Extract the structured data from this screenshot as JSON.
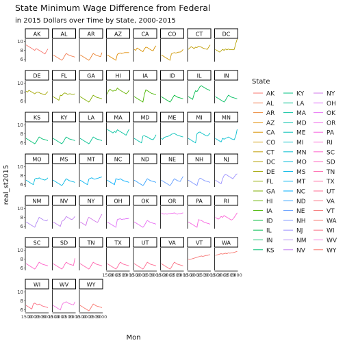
{
  "chart_data": {
    "type": "line",
    "title": "State Minimum Wage Difference from Federal",
    "subtitle": "in 2015 Dollars over Time by State, 2000-2015",
    "xlabel": "Mon",
    "ylabel": "real_st2015",
    "y_ticks": [
      "6",
      "8",
      "10"
    ],
    "x_ticks": [
      "1500",
      "2000",
      "2500",
      "3000"
    ],
    "legend_title": "State",
    "legend_position": "right",
    "grid": false,
    "facet": "wrap by State, 8 columns",
    "colors": {
      "AK": "#F8766D",
      "AL": "#F27D52",
      "AR": "#EA8331",
      "AZ": "#E18A00",
      "CA": "#D89000",
      "CO": "#CD9600",
      "CT": "#C09B00",
      "DC": "#B3A000",
      "DE": "#A3A500",
      "FL": "#93AA00",
      "GA": "#7FAE00",
      "HI": "#67B200",
      "IA": "#48B600",
      "ID": "#00BA38",
      "IL": "#00BB4E",
      "IN": "#00BD61",
      "KS": "#00BF71",
      "KY": "#00C081",
      "LA": "#00C08F",
      "MA": "#00C19D",
      "MD": "#00C1AA",
      "ME": "#00C0B7",
      "MI": "#00BFC4",
      "MN": "#00BDD0",
      "MO": "#00BADB",
      "MS": "#00B6E5",
      "MT": "#00B2EF",
      "NC": "#00ACFC",
      "ND": "#35A2FF",
      "NE": "#619CFF",
      "NH": "#7F96FF",
      "NJ": "#9A8FFF",
      "NM": "#B085F5",
      "NV": "#C17FF0",
      "NY": "#D177E9",
      "OH": "#DF70F8",
      "OK": "#E76BF3",
      "OR": "#F066EA",
      "PA": "#F763E0",
      "RI": "#FC61D5",
      "SC": "#FF61C9",
      "SD": "#FF63BC",
      "TN": "#FF66AE",
      "TX": "#FF69A0",
      "UT": "#FF6C91",
      "VA": "#FA6F81",
      "VT": "#F67474",
      "WA": "#F8766D",
      "WI": "#FB6D82",
      "WV": "#F473DF",
      "WY": "#F8766D"
    },
    "series": [
      {
        "name": "AK",
        "values": [
          9.2,
          9.0,
          8.8,
          8.6,
          8.4,
          8.2,
          8.0,
          8.4,
          8.2,
          8.0,
          7.8,
          7.6,
          7.4,
          7.2,
          7.8,
          8.3
        ]
      },
      {
        "name": "AL",
        "values": [
          7.0,
          6.8,
          6.6,
          6.4,
          6.2,
          6.0,
          5.8,
          6.2,
          6.8,
          7.3,
          7.1,
          6.9,
          6.8,
          6.7,
          6.6,
          6.5
        ]
      },
      {
        "name": "AR",
        "values": [
          7.0,
          6.8,
          6.6,
          6.4,
          6.2,
          6.0,
          5.8,
          6.2,
          6.8,
          7.3,
          7.1,
          6.9,
          6.8,
          6.7,
          6.6,
          7.5
        ]
      },
      {
        "name": "AZ",
        "values": [
          7.0,
          6.8,
          6.6,
          6.4,
          6.2,
          6.0,
          5.8,
          7.1,
          7.3,
          7.4,
          7.3,
          7.4,
          7.5,
          7.5,
          7.5,
          7.5
        ]
      },
      {
        "name": "CA",
        "values": [
          8.2,
          8.0,
          8.5,
          8.3,
          8.1,
          7.9,
          7.7,
          8.3,
          8.7,
          8.6,
          8.4,
          8.2,
          8.0,
          7.9,
          8.6,
          9.0
        ]
      },
      {
        "name": "CO",
        "values": [
          7.0,
          6.8,
          6.6,
          6.4,
          6.2,
          6.0,
          5.8,
          7.2,
          7.4,
          7.5,
          7.4,
          7.5,
          7.6,
          7.6,
          7.8,
          8.2
        ]
      },
      {
        "name": "CT",
        "values": [
          8.2,
          8.5,
          8.8,
          8.6,
          8.4,
          8.7,
          8.6,
          8.9,
          8.8,
          8.7,
          8.5,
          8.4,
          8.3,
          8.2,
          8.7,
          9.2
        ]
      },
      {
        "name": "DC",
        "values": [
          8.2,
          8.0,
          7.8,
          7.6,
          7.9,
          8.2,
          8.0,
          8.3,
          8.1,
          8.3,
          8.1,
          8.2,
          8.1,
          8.2,
          9.5,
          10.5
        ]
      },
      {
        "name": "DE",
        "values": [
          8.2,
          8.0,
          8.4,
          8.2,
          8.0,
          7.8,
          7.6,
          7.9,
          8.0,
          7.9,
          7.7,
          7.6,
          7.5,
          7.4,
          7.8,
          8.1
        ]
      },
      {
        "name": "FL",
        "values": [
          7.0,
          6.8,
          6.6,
          6.4,
          6.2,
          7.3,
          7.2,
          7.6,
          7.8,
          7.7,
          7.5,
          7.6,
          7.6,
          7.5,
          7.5,
          7.6
        ]
      },
      {
        "name": "GA",
        "values": [
          7.0,
          6.8,
          6.6,
          6.4,
          6.2,
          6.0,
          5.8,
          6.2,
          6.8,
          7.3,
          7.1,
          6.9,
          6.8,
          6.7,
          6.6,
          6.5
        ]
      },
      {
        "name": "HI",
        "values": [
          7.5,
          8.3,
          8.6,
          8.4,
          8.2,
          8.4,
          8.3,
          8.9,
          8.6,
          8.4,
          8.2,
          8.0,
          7.8,
          7.6,
          7.9,
          8.4
        ]
      },
      {
        "name": "IA",
        "values": [
          7.0,
          6.8,
          6.6,
          6.4,
          6.2,
          6.0,
          5.8,
          7.5,
          8.5,
          8.3,
          8.1,
          7.9,
          7.7,
          7.6,
          7.5,
          7.4
        ]
      },
      {
        "name": "ID",
        "values": [
          7.0,
          6.8,
          6.6,
          6.4,
          6.2,
          6.0,
          5.8,
          6.2,
          6.8,
          7.3,
          7.1,
          6.9,
          6.8,
          6.7,
          6.6,
          6.5
        ]
      },
      {
        "name": "IL",
        "values": [
          7.0,
          6.8,
          6.6,
          6.4,
          7.5,
          8.3,
          8.1,
          8.6,
          9.2,
          9.4,
          9.2,
          9.0,
          8.8,
          8.6,
          8.5,
          8.3
        ]
      },
      {
        "name": "IN",
        "values": [
          7.0,
          6.8,
          6.6,
          6.4,
          6.2,
          6.0,
          5.8,
          6.2,
          6.8,
          7.3,
          7.1,
          6.9,
          6.8,
          6.7,
          6.6,
          6.5
        ]
      },
      {
        "name": "KS",
        "values": [
          7.0,
          6.8,
          6.6,
          6.4,
          6.2,
          6.0,
          5.8,
          6.2,
          6.8,
          7.3,
          7.1,
          6.9,
          6.8,
          6.7,
          6.6,
          6.5
        ]
      },
      {
        "name": "KY",
        "values": [
          7.0,
          6.8,
          6.6,
          6.4,
          6.2,
          6.0,
          5.8,
          6.2,
          6.8,
          7.3,
          7.1,
          6.9,
          6.8,
          6.7,
          6.6,
          6.5
        ]
      },
      {
        "name": "LA",
        "values": [
          7.0,
          6.8,
          6.6,
          6.4,
          6.2,
          6.0,
          5.8,
          6.2,
          6.8,
          7.3,
          7.1,
          6.9,
          6.8,
          6.7,
          6.6,
          6.5
        ]
      },
      {
        "name": "MA",
        "values": [
          9.0,
          8.8,
          8.6,
          8.4,
          8.2,
          8.5,
          8.3,
          8.9,
          8.7,
          8.5,
          8.3,
          8.1,
          7.9,
          7.7,
          8.4,
          9.0
        ]
      },
      {
        "name": "MD",
        "values": [
          7.0,
          6.8,
          6.6,
          6.4,
          6.2,
          6.0,
          7.5,
          7.6,
          7.4,
          7.3,
          7.1,
          6.9,
          6.8,
          6.7,
          7.2,
          7.8
        ]
      },
      {
        "name": "ME",
        "values": [
          7.0,
          6.8,
          7.2,
          7.3,
          7.4,
          7.5,
          7.6,
          7.9,
          8.0,
          8.1,
          7.9,
          7.7,
          7.6,
          7.5,
          7.4,
          7.3
        ]
      },
      {
        "name": "MI",
        "values": [
          7.0,
          6.8,
          6.6,
          6.4,
          6.2,
          6.0,
          8.0,
          8.3,
          8.4,
          8.2,
          8.0,
          7.8,
          7.6,
          7.5,
          7.8,
          8.2
        ]
      },
      {
        "name": "MN",
        "values": [
          7.0,
          6.8,
          6.6,
          6.4,
          6.2,
          7.0,
          6.8,
          7.0,
          7.1,
          7.3,
          7.1,
          6.9,
          6.8,
          6.7,
          7.5,
          9.0
        ]
      },
      {
        "name": "MO",
        "values": [
          7.0,
          6.8,
          6.6,
          6.4,
          6.2,
          6.0,
          7.2,
          7.4,
          7.3,
          7.5,
          7.3,
          7.2,
          7.1,
          7.0,
          7.2,
          7.5
        ]
      },
      {
        "name": "MS",
        "values": [
          7.0,
          6.8,
          6.6,
          6.4,
          6.2,
          6.0,
          5.8,
          6.2,
          6.8,
          7.3,
          7.1,
          6.9,
          6.8,
          6.7,
          6.6,
          6.5
        ]
      },
      {
        "name": "MT",
        "values": [
          7.0,
          6.8,
          6.6,
          6.4,
          6.2,
          6.0,
          7.2,
          7.4,
          7.5,
          7.3,
          7.2,
          7.3,
          7.4,
          7.5,
          7.6,
          7.7
        ]
      },
      {
        "name": "NC",
        "values": [
          7.0,
          6.8,
          6.6,
          6.4,
          6.2,
          6.0,
          7.3,
          7.2,
          7.1,
          7.3,
          7.1,
          6.9,
          6.8,
          6.7,
          6.6,
          6.5
        ]
      },
      {
        "name": "ND",
        "values": [
          7.0,
          6.8,
          6.6,
          6.4,
          6.2,
          6.0,
          5.8,
          6.2,
          6.8,
          7.3,
          7.1,
          6.9,
          6.8,
          6.7,
          6.6,
          6.5
        ]
      },
      {
        "name": "NE",
        "values": [
          7.0,
          6.8,
          6.6,
          6.4,
          6.2,
          6.0,
          5.8,
          6.2,
          6.8,
          7.3,
          7.1,
          6.9,
          6.8,
          6.7,
          7.3,
          7.8
        ]
      },
      {
        "name": "NH",
        "values": [
          7.0,
          6.8,
          6.6,
          6.4,
          6.2,
          6.0,
          5.8,
          7.0,
          7.4,
          7.3,
          7.1,
          6.9,
          6.8,
          6.7,
          6.6,
          6.5
        ]
      },
      {
        "name": "NJ",
        "values": [
          7.0,
          6.8,
          6.6,
          6.4,
          6.2,
          7.3,
          8.0,
          8.3,
          8.1,
          7.9,
          7.7,
          7.5,
          7.3,
          7.7,
          8.2,
          8.4
        ]
      },
      {
        "name": "NM",
        "values": [
          7.0,
          6.8,
          6.6,
          6.4,
          6.2,
          6.0,
          5.8,
          6.6,
          7.3,
          8.0,
          7.8,
          7.6,
          7.4,
          7.3,
          7.2,
          7.5
        ]
      },
      {
        "name": "NV",
        "values": [
          7.0,
          6.8,
          6.6,
          6.4,
          6.2,
          6.0,
          7.1,
          7.3,
          7.6,
          8.2,
          8.0,
          7.8,
          7.6,
          7.5,
          7.8,
          8.2
        ]
      },
      {
        "name": "NY",
        "values": [
          7.0,
          6.8,
          6.6,
          6.4,
          6.2,
          7.5,
          8.0,
          7.8,
          7.6,
          7.4,
          7.2,
          7.0,
          6.9,
          7.5,
          8.2,
          8.7
        ]
      },
      {
        "name": "OH",
        "values": [
          7.0,
          6.8,
          6.6,
          6.4,
          6.2,
          6.0,
          5.8,
          7.5,
          7.6,
          7.7,
          7.5,
          7.6,
          7.6,
          7.7,
          7.7,
          7.8
        ]
      },
      {
        "name": "OK",
        "values": [
          7.0,
          6.8,
          6.6,
          6.4,
          6.2,
          6.0,
          5.8,
          6.2,
          6.8,
          7.3,
          7.1,
          6.9,
          6.8,
          6.7,
          6.6,
          6.5
        ]
      },
      {
        "name": "OR",
        "values": [
          9.0,
          8.8,
          8.7,
          8.8,
          8.7,
          8.8,
          8.8,
          8.9,
          8.9,
          9.0,
          8.8,
          8.7,
          8.8,
          8.8,
          8.9,
          9.0
        ]
      },
      {
        "name": "PA",
        "values": [
          7.0,
          6.8,
          6.6,
          6.4,
          6.2,
          6.0,
          5.8,
          7.5,
          7.4,
          7.3,
          7.1,
          6.9,
          6.8,
          6.7,
          6.6,
          6.5
        ]
      },
      {
        "name": "RI",
        "values": [
          8.0,
          7.8,
          7.6,
          7.8,
          8.2,
          8.0,
          8.4,
          8.2,
          8.0,
          7.8,
          7.6,
          7.4,
          7.6,
          8.0,
          8.5,
          9.0
        ]
      },
      {
        "name": "SC",
        "values": [
          7.0,
          6.8,
          6.6,
          6.4,
          6.2,
          6.0,
          5.8,
          6.2,
          6.8,
          7.3,
          7.1,
          6.9,
          6.8,
          6.7,
          6.6,
          6.5
        ]
      },
      {
        "name": "SD",
        "values": [
          7.0,
          6.8,
          6.6,
          6.4,
          6.2,
          6.0,
          5.8,
          6.2,
          6.8,
          7.3,
          7.1,
          6.9,
          6.8,
          6.7,
          6.6,
          8.2
        ]
      },
      {
        "name": "TN",
        "values": [
          7.0,
          6.8,
          6.6,
          6.4,
          6.2,
          6.0,
          5.8,
          6.2,
          6.8,
          7.3,
          7.1,
          6.9,
          6.8,
          6.7,
          6.6,
          6.5
        ]
      },
      {
        "name": "TX",
        "values": [
          7.0,
          6.8,
          6.6,
          6.4,
          6.2,
          6.0,
          5.8,
          6.2,
          6.8,
          7.3,
          7.1,
          6.9,
          6.8,
          6.7,
          6.6,
          6.5
        ]
      },
      {
        "name": "UT",
        "values": [
          7.0,
          6.8,
          6.6,
          6.4,
          6.2,
          6.0,
          5.8,
          6.2,
          6.8,
          7.3,
          7.1,
          6.9,
          6.8,
          6.7,
          6.6,
          6.5
        ]
      },
      {
        "name": "VA",
        "values": [
          7.0,
          6.8,
          6.6,
          6.4,
          6.2,
          6.0,
          5.8,
          6.2,
          6.8,
          7.3,
          7.1,
          6.9,
          6.8,
          6.7,
          6.6,
          6.5
        ]
      },
      {
        "name": "VT",
        "values": [
          8.0,
          7.9,
          8.0,
          8.1,
          8.2,
          8.3,
          8.4,
          8.5,
          8.6,
          8.7,
          8.6,
          8.7,
          8.8,
          8.8,
          8.9,
          9.0
        ]
      },
      {
        "name": "WA",
        "values": [
          8.8,
          8.9,
          9.0,
          9.1,
          9.2,
          9.1,
          9.2,
          9.3,
          9.2,
          9.4,
          9.3,
          9.4,
          9.4,
          9.5,
          9.6,
          9.7
        ]
      },
      {
        "name": "WI",
        "values": [
          7.0,
          6.8,
          6.6,
          6.4,
          6.2,
          7.3,
          7.5,
          7.3,
          7.1,
          7.3,
          7.1,
          6.9,
          6.8,
          6.7,
          6.6,
          6.5
        ]
      },
      {
        "name": "WV",
        "values": [
          7.0,
          6.8,
          6.6,
          6.4,
          6.2,
          6.0,
          7.0,
          7.5,
          7.6,
          7.8,
          7.6,
          7.4,
          7.3,
          7.2,
          7.1,
          7.8
        ]
      },
      {
        "name": "WY",
        "values": [
          7.0,
          6.8,
          6.6,
          6.4,
          6.2,
          6.0,
          5.8,
          6.2,
          6.8,
          7.3,
          7.1,
          6.9,
          6.8,
          6.7,
          6.6,
          6.5
        ]
      }
    ]
  }
}
